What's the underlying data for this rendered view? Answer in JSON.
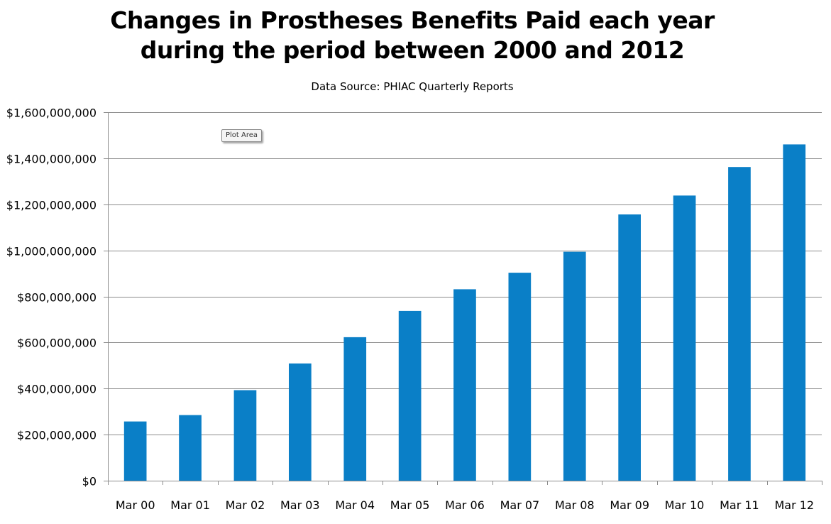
{
  "chart_data": {
    "type": "bar",
    "title_line1": "Changes in Prostheses Benefits Paid each year",
    "title_line2": "during the period between 2000 and 2012",
    "subtitle": "Data Source: PHIAC Quarterly Reports",
    "categories": [
      "Mar 00",
      "Mar 01",
      "Mar 02",
      "Mar 03",
      "Mar 04",
      "Mar 05",
      "Mar 06",
      "Mar 07",
      "Mar 08",
      "Mar 09",
      "Mar 10",
      "Mar 11",
      "Mar 12"
    ],
    "values": [
      257000000,
      285000000,
      393000000,
      509000000,
      623000000,
      737000000,
      831000000,
      903000000,
      994000000,
      1156000000,
      1238000000,
      1362000000,
      1460000000
    ],
    "ylim": [
      0,
      1600000000
    ],
    "yticks": [
      0,
      200000000,
      400000000,
      600000000,
      800000000,
      1000000000,
      1200000000,
      1400000000,
      1600000000
    ],
    "ytick_labels": [
      "$0",
      "$200,000,000",
      "$400,000,000",
      "$600,000,000",
      "$800,000,000",
      "$1,000,000,000",
      "$1,200,000,000",
      "$1,400,000,000",
      "$1,600,000,000"
    ],
    "xlabel": "",
    "ylabel": "",
    "grid": true,
    "legend": "none",
    "bar_color": "#0a7fc7"
  },
  "tooltip": {
    "label": "Plot Area"
  }
}
